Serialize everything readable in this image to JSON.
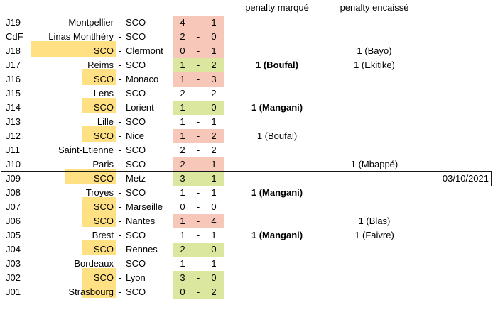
{
  "header": {
    "penalty_scored": "penalty marqué",
    "penalty_conceded": "penalty encaissé"
  },
  "separator": "-",
  "colors": {
    "home_highlight": "#ffe083",
    "win_bg": "#dbe79e",
    "loss_bg": "#f7c7ba",
    "selected_border": "#161616"
  },
  "selected_row": "J09",
  "rows": [
    {
      "day": "J19",
      "home": "Montpellier",
      "away": "SCO",
      "score_home": "4",
      "score_away": "1",
      "result": "loss",
      "highlight": null,
      "pen_scored": "",
      "pen_scored_bold": false,
      "pen_conceded": "",
      "date": ""
    },
    {
      "day": "CdF",
      "home": "Linas Montlhéry",
      "away": "SCO",
      "score_home": "2",
      "score_away": "0",
      "result": "loss",
      "highlight": null,
      "pen_scored": "",
      "pen_scored_bold": false,
      "pen_conceded": "",
      "date": ""
    },
    {
      "day": "J18",
      "home": "SCO",
      "away": "Clermont",
      "score_home": "0",
      "score_away": "1",
      "result": "loss",
      "highlight": "wide",
      "pen_scored": "",
      "pen_scored_bold": false,
      "pen_conceded": "1 (Bayo)",
      "date": ""
    },
    {
      "day": "J17",
      "home": "Reims",
      "away": "SCO",
      "score_home": "1",
      "score_away": "2",
      "result": "win",
      "highlight": null,
      "pen_scored": "1 (Boufal)",
      "pen_scored_bold": true,
      "pen_conceded": "1 (Ekitike)",
      "date": ""
    },
    {
      "day": "J16",
      "home": "SCO",
      "away": "Monaco",
      "score_home": "1",
      "score_away": "3",
      "result": "loss",
      "highlight": "normal",
      "pen_scored": "",
      "pen_scored_bold": false,
      "pen_conceded": "",
      "date": ""
    },
    {
      "day": "J15",
      "home": "Lens",
      "away": "SCO",
      "score_home": "2",
      "score_away": "2",
      "result": "draw",
      "highlight": null,
      "pen_scored": "",
      "pen_scored_bold": false,
      "pen_conceded": "",
      "date": ""
    },
    {
      "day": "J14",
      "home": "SCO",
      "away": "Lorient",
      "score_home": "1",
      "score_away": "0",
      "result": "win",
      "highlight": "normal",
      "pen_scored": "1 (Mangani)",
      "pen_scored_bold": true,
      "pen_conceded": "",
      "date": ""
    },
    {
      "day": "J13",
      "home": "Lille",
      "away": "SCO",
      "score_home": "1",
      "score_away": "1",
      "result": "draw",
      "highlight": null,
      "pen_scored": "",
      "pen_scored_bold": false,
      "pen_conceded": "",
      "date": ""
    },
    {
      "day": "J12",
      "home": "SCO",
      "away": "Nice",
      "score_home": "1",
      "score_away": "2",
      "result": "loss",
      "highlight": "normal",
      "pen_scored": "1 (Boufal)",
      "pen_scored_bold": false,
      "pen_conceded": "",
      "date": ""
    },
    {
      "day": "J11",
      "home": "Saint-Etienne",
      "away": "SCO",
      "score_home": "2",
      "score_away": "2",
      "result": "draw",
      "highlight": null,
      "pen_scored": "",
      "pen_scored_bold": false,
      "pen_conceded": "",
      "date": ""
    },
    {
      "day": "J10",
      "home": "Paris",
      "away": "SCO",
      "score_home": "2",
      "score_away": "1",
      "result": "loss",
      "highlight": null,
      "pen_scored": "",
      "pen_scored_bold": false,
      "pen_conceded": "1 (Mbappé)",
      "date": ""
    },
    {
      "day": "J09",
      "home": "SCO",
      "away": "Metz",
      "score_home": "3",
      "score_away": "1",
      "result": "win",
      "highlight": "medium",
      "pen_scored": "",
      "pen_scored_bold": false,
      "pen_conceded": "",
      "date": "03/10/2021"
    },
    {
      "day": "J08",
      "home": "Troyes",
      "away": "SCO",
      "score_home": "1",
      "score_away": "1",
      "result": "draw",
      "highlight": null,
      "pen_scored": "1 (Mangani)",
      "pen_scored_bold": true,
      "pen_conceded": "",
      "date": ""
    },
    {
      "day": "J07",
      "home": "SCO",
      "away": "Marseille",
      "score_home": "0",
      "score_away": "0",
      "result": "draw",
      "highlight": "normal",
      "pen_scored": "",
      "pen_scored_bold": false,
      "pen_conceded": "",
      "date": ""
    },
    {
      "day": "J06",
      "home": "SCO",
      "away": "Nantes",
      "score_home": "1",
      "score_away": "4",
      "result": "loss",
      "highlight": "normal",
      "pen_scored": "",
      "pen_scored_bold": false,
      "pen_conceded": "1 (Blas)",
      "date": ""
    },
    {
      "day": "J05",
      "home": "Brest",
      "away": "SCO",
      "score_home": "1",
      "score_away": "1",
      "result": "draw",
      "highlight": null,
      "pen_scored": "1 (Mangani)",
      "pen_scored_bold": true,
      "pen_conceded": "1 (Faivre)",
      "date": ""
    },
    {
      "day": "J04",
      "home": "SCO",
      "away": "Rennes",
      "score_home": "2",
      "score_away": "0",
      "result": "win",
      "highlight": "normal",
      "pen_scored": "",
      "pen_scored_bold": false,
      "pen_conceded": "",
      "date": ""
    },
    {
      "day": "J03",
      "home": "Bordeaux",
      "away": "SCO",
      "score_home": "1",
      "score_away": "1",
      "result": "draw",
      "highlight": null,
      "pen_scored": "",
      "pen_scored_bold": false,
      "pen_conceded": "",
      "date": ""
    },
    {
      "day": "J02",
      "home": "SCO",
      "away": "Lyon",
      "score_home": "3",
      "score_away": "0",
      "result": "win",
      "highlight": "normal",
      "pen_scored": "",
      "pen_scored_bold": false,
      "pen_conceded": "",
      "date": ""
    },
    {
      "day": "J01",
      "home": "Strasbourg",
      "away": "SCO",
      "score_home": "0",
      "score_away": "2",
      "result": "win",
      "highlight": "normal",
      "pen_scored": "",
      "pen_scored_bold": false,
      "pen_conceded": "",
      "date": ""
    }
  ]
}
